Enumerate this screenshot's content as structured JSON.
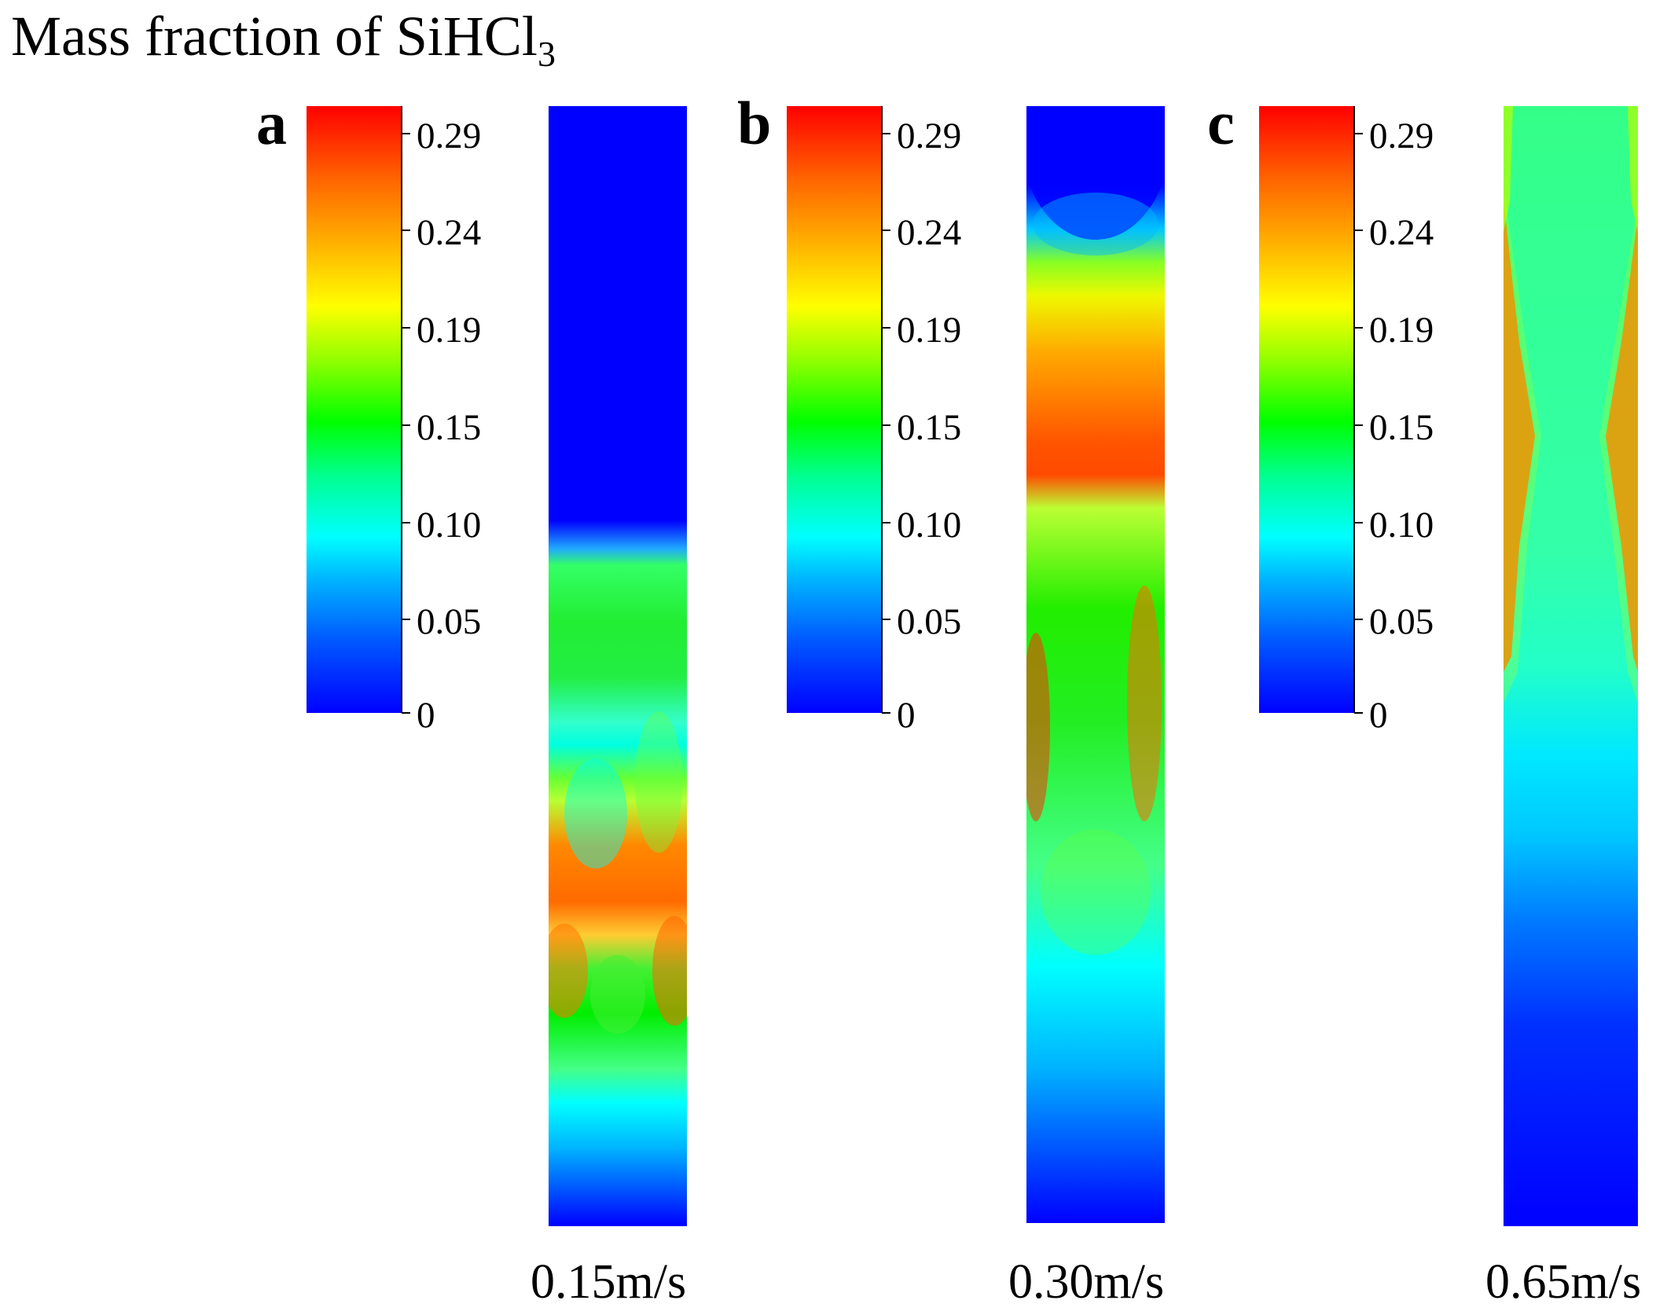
{
  "chart_data": {
    "type": "heatmap",
    "title": "Mass fraction of SiHCl",
    "title_subscript": "3",
    "colormap": {
      "ticks": [
        "0.29",
        "0.24",
        "0.19",
        "0.15",
        "0.10",
        "0.05",
        "0"
      ],
      "range": [
        0,
        0.31
      ],
      "low_color": "#0000ff",
      "high_color": "#ff0000"
    },
    "panels": [
      {
        "label": "a",
        "gas_velocity": "0.15m/s"
      },
      {
        "label": "b",
        "gas_velocity": "0.30m/s"
      },
      {
        "label": "c",
        "gas_velocity": "0.65m/s"
      }
    ]
  }
}
